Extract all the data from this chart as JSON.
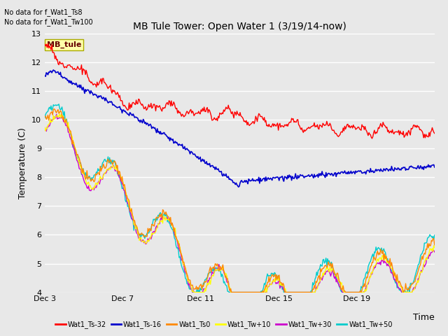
{
  "title": "MB Tule Tower: Open Water 1 (3/19/14-now)",
  "ylabel": "Temperature (C)",
  "xlabel": "Time",
  "no_data_text": [
    "No data for f_Wat1_Ts8",
    "No data for f_Wat1_Tw100"
  ],
  "station_label": "MB_tule",
  "ylim": [
    4.0,
    13.0
  ],
  "yticks": [
    4.0,
    5.0,
    6.0,
    7.0,
    8.0,
    9.0,
    10.0,
    11.0,
    12.0,
    13.0
  ],
  "xtick_positions": [
    0,
    4,
    8,
    12,
    16,
    20
  ],
  "xtick_labels": [
    "Dec 3",
    "Dec 7",
    "Dec 11",
    "Dec 15",
    "Dec 19",
    ""
  ],
  "plot_bg_color": "#e8e8e8",
  "fig_bg_color": "#e8e8e8",
  "series": {
    "Wat1_Ts-32": {
      "color": "#ff0000",
      "lw": 1.0
    },
    "Wat1_Ts-16": {
      "color": "#0000cc",
      "lw": 1.2
    },
    "Wat1_Ts0": {
      "color": "#ff8800",
      "lw": 1.0
    },
    "Wat1_Tw+10": {
      "color": "#ffff00",
      "lw": 1.0
    },
    "Wat1_Tw+30": {
      "color": "#cc00cc",
      "lw": 1.0
    },
    "Wat1_Tw+50": {
      "color": "#00cccc",
      "lw": 1.0
    }
  },
  "legend_colors": [
    "#ff0000",
    "#0000cc",
    "#ff8800",
    "#ffff00",
    "#cc00cc",
    "#00cccc"
  ],
  "legend_labels": [
    "Wat1_Ts-32",
    "Wat1_Ts-16",
    "Wat1_Ts0",
    "Wat1_Tw+10",
    "Wat1_Tw+30",
    "Wat1_Tw+50"
  ]
}
